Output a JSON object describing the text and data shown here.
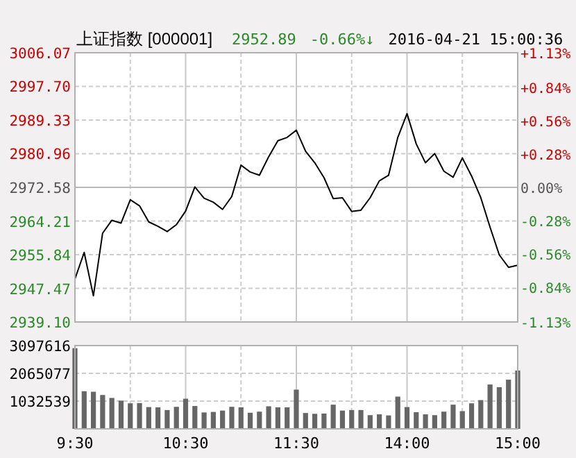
{
  "chart_data": [
    {
      "type": "line",
      "title": "上证指数 [000001]",
      "annotations": [
        "2952.89",
        "-0.66%↓",
        "2016-04-21 15:00:36"
      ],
      "categories": [
        null,
        null,
        null,
        null,
        null,
        null,
        null,
        null,
        null,
        null,
        null,
        null,
        null,
        null,
        null,
        null,
        null,
        null,
        null,
        null,
        null,
        null,
        null,
        null,
        null,
        null,
        null,
        null,
        null,
        null,
        null,
        null,
        null,
        null,
        null,
        null,
        null,
        null,
        null,
        null,
        null,
        null,
        null,
        null,
        null,
        null,
        null,
        null,
        null
      ],
      "values": [
        2949.8,
        2956.4,
        2945.6,
        2961.2,
        2964.4,
        2963.7,
        2969.5,
        2968.0,
        2964.0,
        2962.9,
        2961.6,
        2963.3,
        2966.7,
        2972.7,
        2969.9,
        2968.9,
        2967.1,
        2970.3,
        2978.1,
        2976.4,
        2975.6,
        2980.2,
        2984.2,
        2985.0,
        2986.8,
        2981.6,
        2978.7,
        2975.0,
        2969.8,
        2970.0,
        2966.6,
        2966.9,
        2970.0,
        2974.2,
        2975.6,
        2985.0,
        2990.9,
        2983.4,
        2978.7,
        2981.0,
        2976.6,
        2975.1,
        2979.9,
        2975.4,
        2970.0,
        2962.7,
        2955.8,
        2952.7,
        2953.2
      ],
      "color": "#000000",
      "ylim": [
        2939.1,
        3006.07
      ],
      "yticks": [
        {
          "value": 3006.07,
          "label": "3006.07"
        },
        {
          "value": 2997.7,
          "label": "2997.70"
        },
        {
          "value": 2989.33,
          "label": "2989.33"
        },
        {
          "value": 2980.96,
          "label": "2980.96"
        },
        {
          "value": 2972.58,
          "label": "2972.58"
        },
        {
          "value": 2964.21,
          "label": "2964.21"
        },
        {
          "value": 2955.84,
          "label": "2955.84"
        },
        {
          "value": 2947.47,
          "label": "2947.47"
        },
        {
          "value": 2939.1,
          "label": "2939.10"
        }
      ],
      "y2lim": [
        -1.13,
        1.13
      ],
      "y2ticks": [
        {
          "value": 1.13,
          "label": "+1.13%"
        },
        {
          "value": 0.84,
          "label": "+0.84%"
        },
        {
          "value": 0.56,
          "label": "+0.56%"
        },
        {
          "value": 0.28,
          "label": "+0.28%"
        },
        {
          "value": 0,
          "label": "0.00%"
        },
        {
          "value": -0.28,
          "label": "-0.28%"
        },
        {
          "value": -0.56,
          "label": "-0.56%"
        },
        {
          "value": -0.84,
          "label": "-0.84%"
        },
        {
          "value": -1.13,
          "label": "-1.13%"
        }
      ],
      "grid": true,
      "tick_labels": "y"
    },
    {
      "type": "bar",
      "categories": [
        "9:30",
        null,
        null,
        null,
        null,
        null,
        null,
        null,
        null,
        null,
        null,
        null,
        "10:30",
        null,
        null,
        null,
        null,
        null,
        null,
        null,
        null,
        null,
        null,
        null,
        "11:30",
        null,
        null,
        null,
        null,
        null,
        null,
        null,
        null,
        null,
        null,
        null,
        "14:00",
        null,
        null,
        null,
        null,
        null,
        null,
        null,
        null,
        null,
        null,
        null,
        "15:00"
      ],
      "values": [
        3000000,
        1400000,
        1380000,
        1260000,
        1150000,
        1050000,
        950000,
        960000,
        810000,
        800000,
        700000,
        820000,
        1120000,
        850000,
        610000,
        630000,
        680000,
        820000,
        800000,
        600000,
        640000,
        840000,
        800000,
        800000,
        1460000,
        590000,
        560000,
        570000,
        900000,
        680000,
        700000,
        700000,
        510000,
        540000,
        500000,
        1200000,
        810000,
        620000,
        540000,
        510000,
        640000,
        900000,
        660000,
        950000,
        1070000,
        1650000,
        1550000,
        1830000,
        2170000
      ],
      "color": "#666666",
      "ylim": [
        0,
        3097616
      ],
      "yticks": [
        1032539,
        2065077,
        3097616
      ],
      "grid": true
    }
  ]
}
